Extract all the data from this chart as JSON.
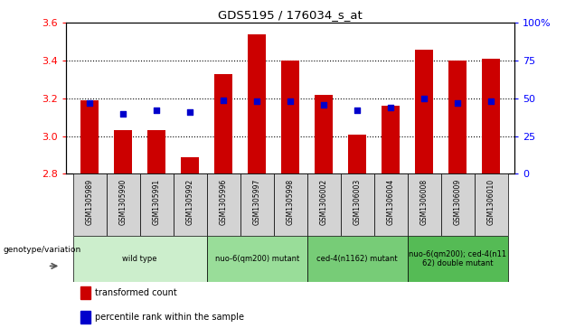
{
  "title": "GDS5195 / 176034_s_at",
  "samples": [
    "GSM1305989",
    "GSM1305990",
    "GSM1305991",
    "GSM1305992",
    "GSM1305996",
    "GSM1305997",
    "GSM1305998",
    "GSM1306002",
    "GSM1306003",
    "GSM1306004",
    "GSM1306008",
    "GSM1306009",
    "GSM1306010"
  ],
  "bar_values": [
    3.19,
    3.03,
    3.03,
    2.89,
    3.33,
    3.54,
    3.4,
    3.22,
    3.01,
    3.16,
    3.46,
    3.4,
    3.41
  ],
  "bar_baseline": 2.8,
  "percentile_values": [
    47,
    40,
    42,
    41,
    49,
    48,
    48,
    46,
    42,
    44,
    50,
    47,
    48
  ],
  "ylim_left": [
    2.8,
    3.6
  ],
  "ylim_right": [
    0,
    100
  ],
  "yticks_left": [
    2.8,
    3.0,
    3.2,
    3.4,
    3.6
  ],
  "yticks_right": [
    0,
    25,
    50,
    75,
    100
  ],
  "ytick_labels_right": [
    "0",
    "25",
    "50",
    "75",
    "100%"
  ],
  "bar_color": "#cc0000",
  "percentile_color": "#0000cc",
  "bg_color": "#ffffff",
  "plot_bg_color": "#ffffff",
  "sample_box_color": "#d3d3d3",
  "groups": [
    {
      "label": "wild type",
      "start": 0,
      "end": 3,
      "color": "#cceecc"
    },
    {
      "label": "nuo-6(qm200) mutant",
      "start": 4,
      "end": 6,
      "color": "#99dd99"
    },
    {
      "label": "ced-4(n1162) mutant",
      "start": 7,
      "end": 9,
      "color": "#77cc77"
    },
    {
      "label": "nuo-6(qm200); ced-4(n11\n62) double mutant",
      "start": 10,
      "end": 12,
      "color": "#55bb55"
    }
  ],
  "genotype_label": "genotype/variation",
  "legend_items": [
    {
      "label": "transformed count",
      "color": "#cc0000"
    },
    {
      "label": "percentile rank within the sample",
      "color": "#0000cc"
    }
  ],
  "bar_width": 0.55,
  "grid_yticks": [
    3.0,
    3.2,
    3.4
  ]
}
